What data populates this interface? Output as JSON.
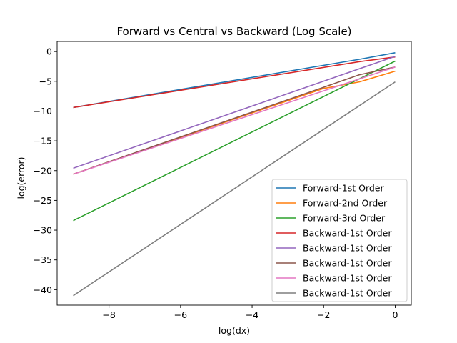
{
  "chart_data": {
    "type": "line",
    "title": "Forward vs Central vs Backward (Log Scale)",
    "xlabel": "log(dx)",
    "ylabel": "log(error)",
    "xlim": [
      -9.45,
      0.45
    ],
    "ylim": [
      -42.6,
      1.7
    ],
    "xticks": [
      -8,
      -6,
      -4,
      -2,
      0
    ],
    "xtick_labels": [
      "−8",
      "−6",
      "−4",
      "−2",
      "0"
    ],
    "yticks": [
      0,
      -5,
      -10,
      -15,
      -20,
      -25,
      -30,
      -35,
      -40
    ],
    "ytick_labels": [
      "0",
      "−5",
      "−10",
      "−15",
      "−20",
      "−25",
      "−30",
      "−35",
      "−40"
    ],
    "grid": false,
    "legend_position": "lower right",
    "series": [
      {
        "name": "Forward-1st Order",
        "color": "#1f77b4",
        "x": [
          -9,
          -1,
          0
        ],
        "y": [
          -9.4,
          -1.3,
          -0.2
        ]
      },
      {
        "name": "Forward-2nd Order",
        "color": "#ff7f0e",
        "x": [
          -9,
          -2,
          -1,
          0
        ],
        "y": [
          -20.6,
          -6.2,
          -5.1,
          -3.3
        ]
      },
      {
        "name": "Forward-3rd Order",
        "color": "#2ca02c",
        "x": [
          -9,
          0
        ],
        "y": [
          -28.4,
          -1.6
        ]
      },
      {
        "name": "Backward-1st Order",
        "color": "#d62728",
        "x": [
          -9,
          -1,
          0
        ],
        "y": [
          -9.4,
          -1.7,
          -0.9
        ]
      },
      {
        "name": "Backward-1st Order",
        "color": "#9467bd",
        "x": [
          -9,
          0
        ],
        "y": [
          -19.6,
          -0.8
        ]
      },
      {
        "name": "Backward-1st Order",
        "color": "#8c564b",
        "x": [
          -9,
          -2,
          -1,
          0
        ],
        "y": [
          -20.6,
          -6.0,
          -3.9,
          -2.6
        ]
      },
      {
        "name": "Backward-1st Order",
        "color": "#e377c2",
        "x": [
          -9,
          0
        ],
        "y": [
          -20.6,
          -2.6
        ]
      },
      {
        "name": "Backward-1st Order",
        "color": "#7f7f7f",
        "x": [
          -9,
          0
        ],
        "y": [
          -41.0,
          -5.1
        ]
      }
    ]
  }
}
